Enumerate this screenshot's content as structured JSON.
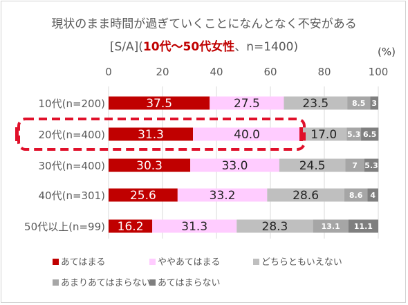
{
  "chart_data": {
    "type": "bar",
    "orientation": "horizontal",
    "stacked": true,
    "title": "現状のまま時間が過ぎていくことになんとなく不安がある",
    "subtitle": {
      "prefix": "[S/A](",
      "highlight": "10代～50代女性",
      "suffix": "、n=1400)"
    },
    "unit_label": "(%)",
    "xlim": [
      0,
      100
    ],
    "xticks": [
      "0",
      "20",
      "40",
      "60",
      "80",
      "100"
    ],
    "categories": [
      "10代(n=200)",
      "20代(n=400)",
      "30代(n=400)",
      "40代(n=301)",
      "50代以上(n=99)"
    ],
    "series": [
      {
        "name": "あてはまる",
        "color": "#c00000",
        "values": [
          37.5,
          31.3,
          30.3,
          25.6,
          16.2
        ],
        "labels": [
          "37.5",
          "31.3",
          "30.3",
          "25.6",
          "16.2"
        ]
      },
      {
        "name": "ややあてはまる",
        "color": "#ffccff",
        "values": [
          27.5,
          40.0,
          33.0,
          33.2,
          31.3
        ],
        "labels": [
          "27.5",
          "40.0",
          "33.0",
          "33.2",
          "31.3"
        ]
      },
      {
        "name": "どちらともいえない",
        "color": "#bfbfbf",
        "values": [
          23.5,
          17.0,
          24.5,
          28.6,
          28.3
        ],
        "labels": [
          "23.5",
          "17.0",
          "24.5",
          "28.6",
          "28.3"
        ]
      },
      {
        "name": "あまりあてはまらない",
        "color": "#a6a6a6",
        "values": [
          8.5,
          5.3,
          7,
          8.6,
          13.1
        ],
        "labels": [
          "8.5",
          "5.3",
          "7",
          "8.6",
          "13.1"
        ]
      },
      {
        "name": "あてはまらない",
        "color": "#7f7f7f",
        "values": [
          3,
          6.5,
          5.3,
          4,
          11.1
        ],
        "labels": [
          "3",
          "6.5",
          "5.3",
          "4",
          "11.1"
        ]
      }
    ],
    "highlighted_category": "20代(n=400)",
    "legend_position": "bottom",
    "grid": true
  }
}
